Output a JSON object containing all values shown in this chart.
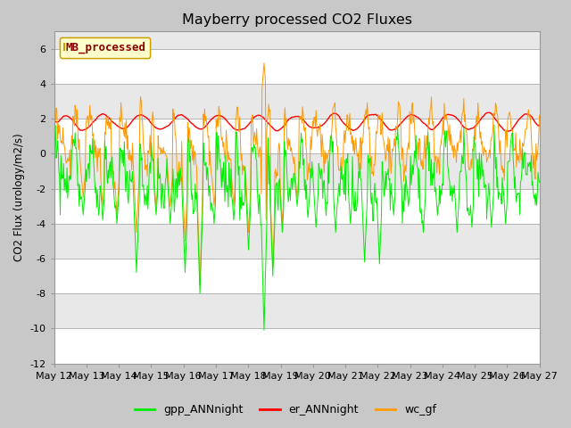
{
  "title": "Mayberry processed CO2 Fluxes",
  "ylabel": "CO2 Flux (urology/m2/s)",
  "ylim": [
    -12,
    7
  ],
  "yticks": [
    -12,
    -10,
    -8,
    -6,
    -4,
    -2,
    0,
    2,
    4,
    6
  ],
  "bg_outer": "#c8c8c8",
  "line_colors": {
    "gpp": "#00ee00",
    "er": "#ff0000",
    "wc": "#ff9900"
  },
  "line_labels": {
    "gpp": "gpp_ANNnight",
    "er": "er_ANNnight",
    "wc": "wc_gf"
  },
  "legend_label": "MB_processed",
  "legend_text_color": "#8b0000",
  "legend_box_color": "#ffffcc",
  "legend_edge_color": "#c8a000",
  "n_points": 720,
  "x_start": 12,
  "x_end": 27,
  "xtick_days": [
    12,
    13,
    14,
    15,
    16,
    17,
    18,
    19,
    20,
    21,
    22,
    23,
    24,
    25,
    26,
    27
  ]
}
